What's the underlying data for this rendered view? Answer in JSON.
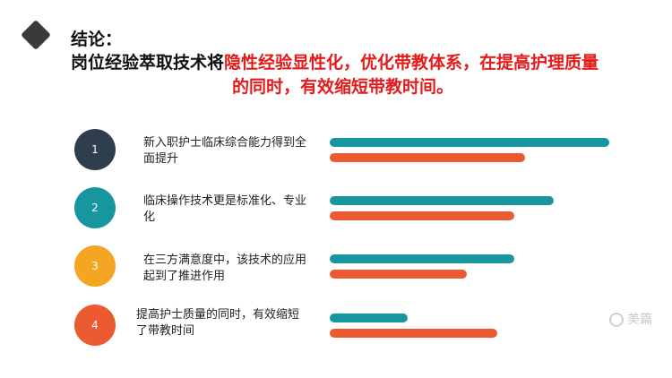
{
  "heading": {
    "conclusion_label": "结论：",
    "line1_black": "岗位经验萃取技术将",
    "line1_red": "隐性经验显性化，优化带教体系，在提高护理质量",
    "line2_red": "的同时，有效缩短带教时间。"
  },
  "colors": {
    "title_text": "#111111",
    "highlight_red": "#e31b1b",
    "teal": "#1896a0",
    "orange": "#eb5a30",
    "circle_1": "#2f3e4d",
    "circle_2": "#1896a0",
    "circle_3": "#f4a623",
    "circle_4": "#eb5a30"
  },
  "items": [
    {
      "number": "1",
      "text": "新入职护士临床综合能力得到全面提升",
      "teal_value": 1.0,
      "orange_value": 0.7
    },
    {
      "number": "2",
      "text": "临床操作技术更是标准化、专业化",
      "teal_value": 0.8,
      "orange_value": 0.66
    },
    {
      "number": "3",
      "text": "在三方满意度中，该技术的应用起到了推进作用",
      "teal_value": 0.66,
      "orange_value": 0.49
    },
    {
      "number": "4",
      "text": "提高护士质量的同时，有效缩短了带教时间",
      "teal_value": 0.28,
      "orange_value": 0.6
    }
  ],
  "watermark": "美篇"
}
